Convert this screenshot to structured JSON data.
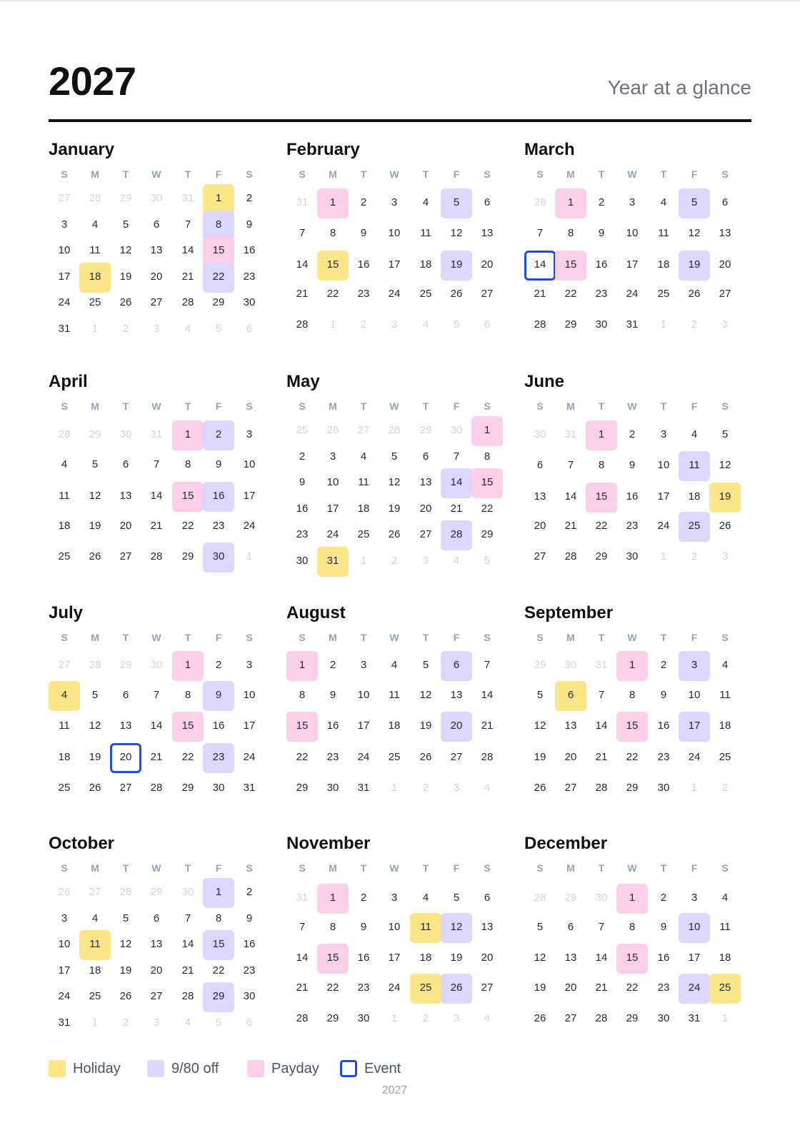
{
  "year": "2027",
  "subtitle": "Year at a glance",
  "weekdays": [
    "S",
    "M",
    "T",
    "W",
    "T",
    "F",
    "S"
  ],
  "legend": [
    {
      "kind": "holiday",
      "label": "Holiday"
    },
    {
      "kind": "off",
      "label": "9/80 off"
    },
    {
      "kind": "payday",
      "label": "Payday"
    },
    {
      "kind": "event",
      "label": "Event"
    }
  ],
  "footer": "2027",
  "colors": {
    "holiday": "#fde68a",
    "off": "#ddd6fe",
    "payday": "#fbcfe8",
    "event": "#1d4ed8"
  },
  "months": [
    {
      "name": "January",
      "lead": [
        27,
        28,
        29,
        30,
        31
      ],
      "days": 31,
      "trail": [
        1,
        2,
        3,
        4,
        5,
        6
      ],
      "marks": {
        "1": "holiday",
        "8": "off",
        "15": "payday",
        "18": "holiday",
        "22": "off"
      }
    },
    {
      "name": "February",
      "lead": [
        31
      ],
      "days": 28,
      "trail": [
        1,
        2,
        3,
        4,
        5,
        6
      ],
      "marks": {
        "1": "payday",
        "5": "off",
        "15": "holiday",
        "19": "off"
      }
    },
    {
      "name": "March",
      "lead": [
        28
      ],
      "days": 31,
      "trail": [
        1,
        2,
        3
      ],
      "marks": {
        "1": "payday",
        "5": "off",
        "14": "event",
        "15": "payday",
        "19": "off"
      }
    },
    {
      "name": "April",
      "lead": [
        28,
        29,
        30,
        31
      ],
      "days": 30,
      "trail": [
        1
      ],
      "marks": {
        "1": "payday",
        "2": "off",
        "15": "payday",
        "16": "off",
        "30": "off"
      }
    },
    {
      "name": "May",
      "lead": [
        25,
        26,
        27,
        28,
        29,
        30
      ],
      "days": 31,
      "trail": [
        1,
        2,
        3,
        4,
        5
      ],
      "marks": {
        "1": "payday",
        "14": "off",
        "15": "payday",
        "28": "off",
        "31": "holiday"
      }
    },
    {
      "name": "June",
      "lead": [
        30,
        31
      ],
      "days": 30,
      "trail": [
        1,
        2,
        3
      ],
      "marks": {
        "1": "payday",
        "11": "off",
        "15": "payday",
        "19": "holiday",
        "25": "off"
      }
    },
    {
      "name": "July",
      "lead": [
        27,
        28,
        29,
        30
      ],
      "days": 31,
      "trail": [],
      "marks": {
        "1": "payday",
        "4": "holiday",
        "9": "off",
        "15": "payday",
        "20": "event",
        "23": "off"
      }
    },
    {
      "name": "August",
      "lead": [],
      "days": 31,
      "trail": [
        1,
        2,
        3,
        4
      ],
      "marks": {
        "1": "payday",
        "6": "off",
        "15": "payday",
        "20": "off"
      }
    },
    {
      "name": "September",
      "lead": [
        29,
        30,
        31
      ],
      "days": 30,
      "trail": [
        1,
        2
      ],
      "marks": {
        "1": "payday",
        "3": "off",
        "6": "holiday",
        "15": "payday",
        "17": "off"
      }
    },
    {
      "name": "October",
      "lead": [
        26,
        27,
        28,
        29,
        30
      ],
      "days": 31,
      "trail": [
        1,
        2,
        3,
        4,
        5,
        6
      ],
      "marks": {
        "1": "off",
        "11": "holiday",
        "15": "off",
        "29": "off"
      }
    },
    {
      "name": "November",
      "lead": [
        31
      ],
      "days": 30,
      "trail": [
        1,
        2,
        3,
        4
      ],
      "marks": {
        "1": "payday",
        "11": "holiday",
        "12": "off",
        "15": "payday",
        "25": "holiday",
        "26": "off"
      }
    },
    {
      "name": "December",
      "lead": [
        28,
        29,
        30
      ],
      "days": 31,
      "trail": [
        1
      ],
      "marks": {
        "1": "payday",
        "10": "off",
        "15": "payday",
        "24": "off",
        "25": "holiday"
      }
    }
  ]
}
